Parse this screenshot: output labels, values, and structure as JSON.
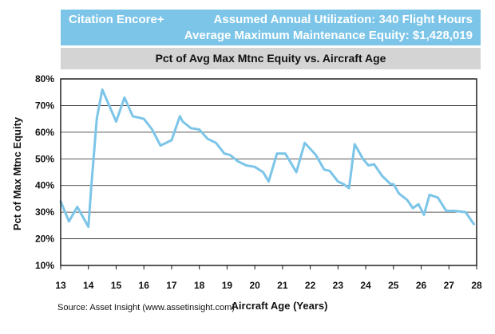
{
  "header": {
    "aircraft": "Citation Encore+",
    "utilization": "Assumed Annual Utilization: 340 Flight Hours",
    "equity": "Average Maximum Maintenance Equity: $1,428,019"
  },
  "source": "Source: Asset Insight (www.assetinsight.com)",
  "colors": {
    "header_bg": "#7cc5e8",
    "line": "#7cc5e8",
    "title_bg": "#d4d4d4"
  },
  "chart_data": {
    "type": "line",
    "title": "Pct of Avg Max Mtnc Equity vs. Aircraft Age",
    "xlabel": "Aircraft Age (Years)",
    "ylabel": "Pct of Max Mtnc Equity",
    "xlim": [
      13,
      28
    ],
    "ylim": [
      10,
      80
    ],
    "xticks": [
      13,
      14,
      15,
      16,
      17,
      18,
      19,
      20,
      21,
      22,
      23,
      24,
      25,
      26,
      27,
      28
    ],
    "yticks": [
      10,
      20,
      30,
      40,
      50,
      60,
      70,
      80
    ],
    "ytick_labels": [
      "10%",
      "20%",
      "30%",
      "40%",
      "50%",
      "60%",
      "70%",
      "80%"
    ],
    "grid": true,
    "series": [
      {
        "name": "Pct of Avg Max Mtnc Equity",
        "x": [
          13.0,
          13.3,
          13.6,
          14.0,
          14.1,
          14.3,
          14.5,
          15.0,
          15.3,
          15.6,
          16.0,
          16.3,
          16.6,
          17.0,
          17.3,
          17.4,
          17.7,
          18.0,
          18.3,
          18.6,
          18.9,
          19.1,
          19.4,
          19.7,
          20.0,
          20.3,
          20.5,
          20.8,
          21.1,
          21.3,
          21.5,
          21.8,
          22.2,
          22.5,
          22.7,
          23.0,
          23.2,
          23.4,
          23.6,
          23.9,
          24.1,
          24.3,
          24.6,
          24.9,
          25.0,
          25.2,
          25.5,
          25.7,
          25.9,
          26.1,
          26.3,
          26.6,
          26.9,
          27.2,
          27.6,
          27.9
        ],
        "y": [
          34,
          26.5,
          32,
          24.5,
          39,
          65,
          76,
          64,
          73,
          66,
          65,
          61,
          55,
          57,
          66,
          64,
          61.5,
          61,
          57.5,
          56,
          52,
          51.5,
          49,
          47.5,
          47,
          45,
          41.5,
          52,
          52,
          48.5,
          45,
          56,
          51.5,
          46,
          45.5,
          41.5,
          40.5,
          39,
          55.5,
          50,
          47.5,
          48,
          43.5,
          40.5,
          40.5,
          37,
          34.5,
          31.5,
          33,
          29,
          36.5,
          35.5,
          30.5,
          30.5,
          30,
          25.5
        ]
      }
    ]
  }
}
